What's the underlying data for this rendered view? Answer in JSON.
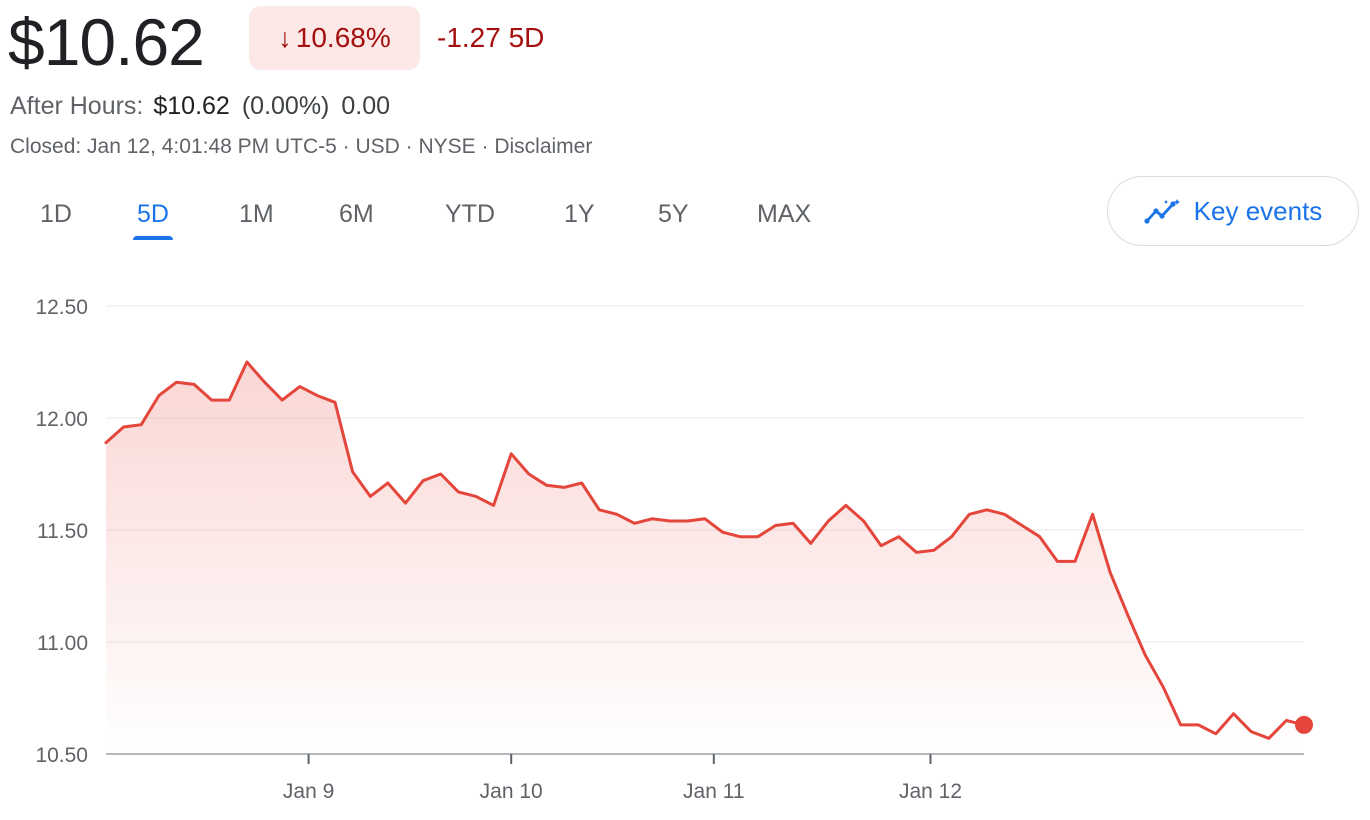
{
  "quote": {
    "price": "$10.62",
    "change_pct": "10.68%",
    "change_abs": "-1.27 5D",
    "after_hours_label": "After Hours:",
    "after_hours_price": "$10.62",
    "after_hours_pct": "(0.00%)",
    "after_hours_change": "0.00",
    "closed_line": "Closed: Jan 12, 4:01:48 PM UTC-5 · USD · NYSE · Disclaimer"
  },
  "tabs": [
    {
      "label": "1D",
      "active": false
    },
    {
      "label": "5D",
      "active": true
    },
    {
      "label": "1M",
      "active": false
    },
    {
      "label": "6M",
      "active": false
    },
    {
      "label": "YTD",
      "active": false
    },
    {
      "label": "1Y",
      "active": false
    },
    {
      "label": "5Y",
      "active": false
    },
    {
      "label": "MAX",
      "active": false
    }
  ],
  "key_events": {
    "label": "Key events",
    "icon": "sparkline-icon"
  },
  "colors": {
    "line": "#e5463b",
    "down_text": "#a50e0e",
    "down_bg": "#fce8e6",
    "accent": "#1a73e8"
  },
  "chart_data": {
    "type": "line",
    "title": "",
    "xlabel": "",
    "ylabel": "",
    "ylim": [
      10.5,
      12.5
    ],
    "y_ticks": [
      "12.50",
      "12.00",
      "11.50",
      "11.00",
      "10.50"
    ],
    "y_tick_values": [
      12.5,
      12.0,
      11.5,
      11.0,
      10.5
    ],
    "x_ticks": [
      {
        "label": "Jan 9",
        "at": 11.5
      },
      {
        "label": "Jan 10",
        "at": 23.0
      },
      {
        "label": "Jan 11",
        "at": 34.5
      },
      {
        "label": "Jan 12",
        "at": 46.8
      }
    ],
    "grid": true,
    "series": [
      {
        "values": [
          11.89,
          11.96,
          11.97,
          12.1,
          12.16,
          12.15,
          12.08,
          12.08,
          12.25,
          12.16,
          12.08,
          12.14,
          12.1,
          12.07,
          11.76,
          11.65,
          11.71,
          11.62,
          11.72,
          11.75,
          11.67,
          11.65,
          11.61,
          11.84,
          11.75,
          11.7,
          11.69,
          11.71,
          11.59,
          11.57,
          11.53,
          11.55,
          11.54,
          11.54,
          11.55,
          11.49,
          11.47,
          11.47,
          11.52,
          11.53,
          11.44,
          11.54,
          11.61,
          11.54,
          11.43,
          11.47,
          11.4,
          11.41,
          11.47,
          11.57,
          11.59,
          11.57,
          11.52,
          11.47,
          11.36,
          11.36,
          11.57,
          11.31,
          11.12,
          10.94,
          10.8,
          10.63,
          10.63,
          10.59,
          10.68,
          10.6,
          10.57,
          10.65,
          10.63
        ]
      }
    ],
    "last_point_marker": true
  }
}
